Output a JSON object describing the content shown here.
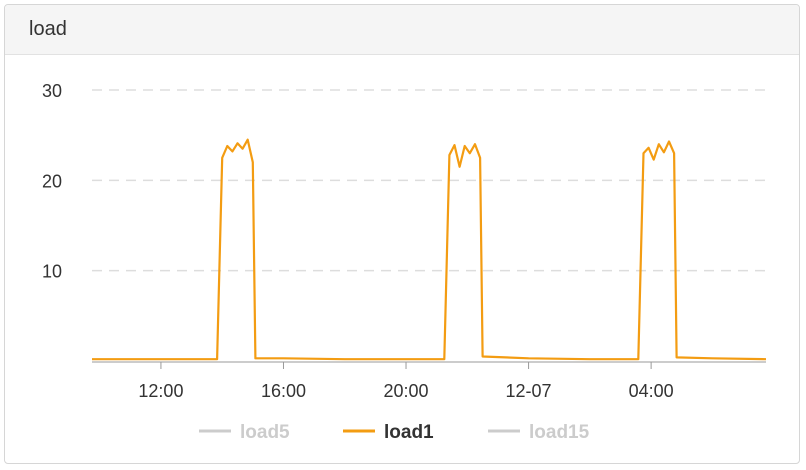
{
  "panel": {
    "title": "load"
  },
  "chart_data": {
    "type": "line",
    "title": "load",
    "xlabel": "",
    "ylabel": "",
    "ylim": [
      0,
      30
    ],
    "y_ticks": [
      10,
      20,
      30
    ],
    "x_ticks": [
      "12:00",
      "16:00",
      "20:00",
      "12-07",
      "04:00"
    ],
    "x_start": "2023-12-06 09:45",
    "x_end": "2023-12-07 07:45",
    "grid": true,
    "legend_position": "bottom",
    "series": [
      {
        "name": "load5",
        "color": "#cccccc",
        "visible": false,
        "points": []
      },
      {
        "name": "load1",
        "color": "#f39c12",
        "visible": true,
        "points": [
          [
            "2023-12-06 09:45",
            0.2
          ],
          [
            "2023-12-06 11:00",
            0.2
          ],
          [
            "2023-12-06 12:30",
            0.2
          ],
          [
            "2023-12-06 13:50",
            0.2
          ],
          [
            "2023-12-06 14:00",
            22.5
          ],
          [
            "2023-12-06 14:10",
            23.8
          ],
          [
            "2023-12-06 14:20",
            23.2
          ],
          [
            "2023-12-06 14:30",
            24.1
          ],
          [
            "2023-12-06 14:40",
            23.5
          ],
          [
            "2023-12-06 14:50",
            24.5
          ],
          [
            "2023-12-06 15:00",
            22.0
          ],
          [
            "2023-12-06 15:05",
            0.3
          ],
          [
            "2023-12-06 16:00",
            0.3
          ],
          [
            "2023-12-06 18:00",
            0.2
          ],
          [
            "2023-12-06 20:00",
            0.2
          ],
          [
            "2023-12-06 21:15",
            0.2
          ],
          [
            "2023-12-06 21:25",
            22.8
          ],
          [
            "2023-12-06 21:35",
            23.9
          ],
          [
            "2023-12-06 21:45",
            21.5
          ],
          [
            "2023-12-06 21:55",
            23.8
          ],
          [
            "2023-12-06 22:05",
            23.0
          ],
          [
            "2023-12-06 22:15",
            24.0
          ],
          [
            "2023-12-06 22:25",
            22.5
          ],
          [
            "2023-12-06 22:30",
            0.5
          ],
          [
            "2023-12-07 00:00",
            0.3
          ],
          [
            "2023-12-07 02:00",
            0.2
          ],
          [
            "2023-12-07 03:35",
            0.2
          ],
          [
            "2023-12-07 03:45",
            23.0
          ],
          [
            "2023-12-07 03:55",
            23.6
          ],
          [
            "2023-12-07 04:05",
            22.3
          ],
          [
            "2023-12-07 04:15",
            24.0
          ],
          [
            "2023-12-07 04:25",
            23.1
          ],
          [
            "2023-12-07 04:35",
            24.3
          ],
          [
            "2023-12-07 04:45",
            23.0
          ],
          [
            "2023-12-07 04:50",
            0.4
          ],
          [
            "2023-12-07 06:00",
            0.3
          ],
          [
            "2023-12-07 07:45",
            0.2
          ]
        ]
      },
      {
        "name": "load15",
        "color": "#cccccc",
        "visible": false,
        "points": []
      }
    ],
    "x_tick_times": [
      "2023-12-06 12:00",
      "2023-12-06 16:00",
      "2023-12-06 20:00",
      "2023-12-07 00:00",
      "2023-12-07 04:00"
    ]
  }
}
